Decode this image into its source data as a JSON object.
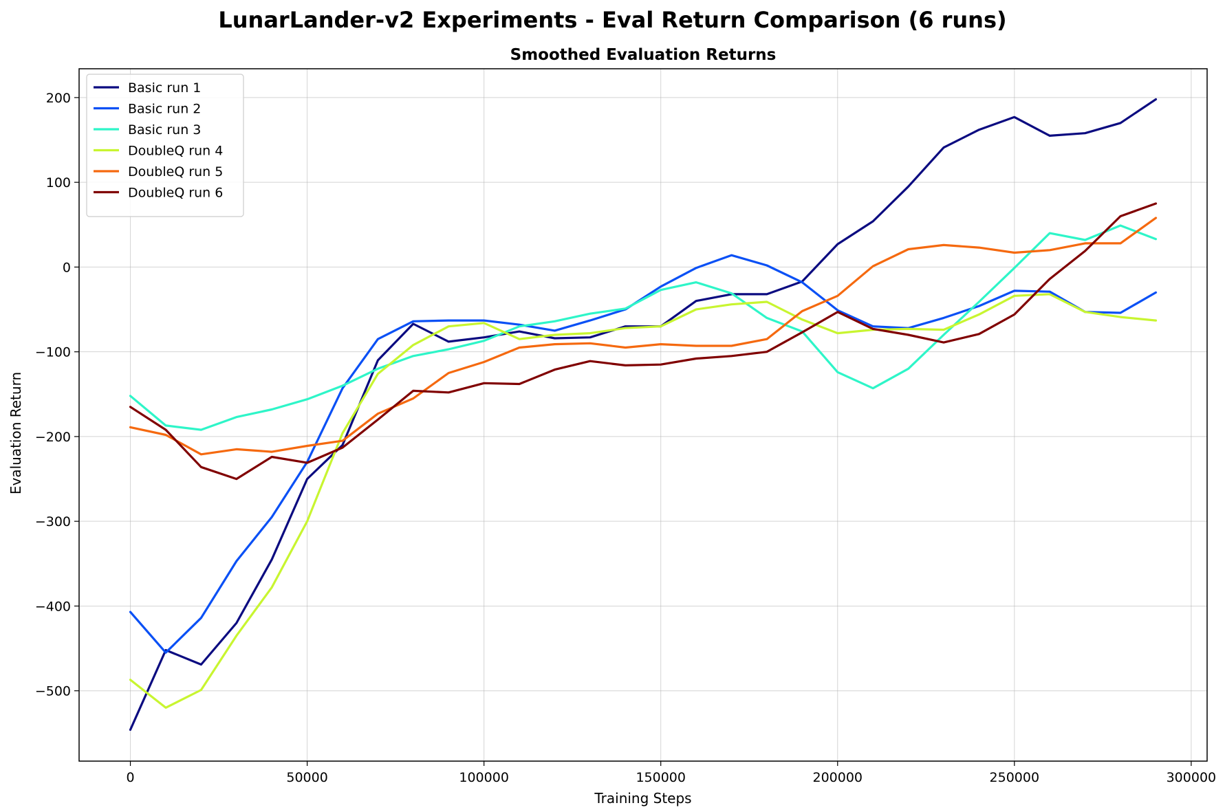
{
  "figure": {
    "title": "LunarLander-v2 Experiments - Eval Return Comparison (6 runs)"
  },
  "chart_data": {
    "type": "line",
    "title": "Smoothed Evaluation Returns",
    "xlabel": "Training Steps",
    "ylabel": "Evaluation Return",
    "xlim": [
      -14500,
      304500
    ],
    "ylim": [
      -583,
      234
    ],
    "xticks": [
      0,
      50000,
      100000,
      150000,
      200000,
      250000,
      300000
    ],
    "yticks": [
      -500,
      -400,
      -300,
      -200,
      -100,
      0,
      100,
      200
    ],
    "xtick_labels": [
      "0",
      "50000",
      "100000",
      "150000",
      "200000",
      "250000",
      "300000"
    ],
    "ytick_labels": [
      "−500",
      "−400",
      "−300",
      "−200",
      "−100",
      "0",
      "100",
      "200"
    ],
    "grid": true,
    "legend_position": "top-left",
    "x": [
      0,
      10000,
      20000,
      30000,
      40000,
      50000,
      60000,
      70000,
      80000,
      90000,
      100000,
      110000,
      120000,
      130000,
      140000,
      150000,
      160000,
      170000,
      180000,
      190000,
      200000,
      210000,
      220000,
      230000,
      240000,
      250000,
      260000,
      270000,
      280000,
      290000
    ],
    "series": [
      {
        "name": "Basic run 1",
        "color": "#0b0b80",
        "values": [
          -546,
          -452,
          -469,
          -420,
          -345,
          -250,
          -210,
          -110,
          -67,
          -88,
          -83,
          -76,
          -84,
          -83,
          -70,
          -70,
          -40,
          -32,
          -32,
          -17,
          27,
          54,
          95,
          141,
          162,
          177,
          155,
          158,
          170,
          198
        ]
      },
      {
        "name": "Basic run 2",
        "color": "#0a50f5",
        "values": [
          -407,
          -455,
          -414,
          -347,
          -295,
          -230,
          -143,
          -85,
          -64,
          -63,
          -63,
          -68,
          -75,
          -63,
          -50,
          -23,
          -1,
          14,
          2,
          -18,
          -51,
          -70,
          -72,
          -60,
          -46,
          -28,
          -29,
          -53,
          -54,
          -30
        ]
      },
      {
        "name": "Basic run 3",
        "color": "#2ef5c8",
        "values": [
          -152,
          -187,
          -192,
          -177,
          -168,
          -156,
          -140,
          -120,
          -105,
          -97,
          -87,
          -70,
          -64,
          -55,
          -49,
          -27,
          -18,
          -31,
          -60,
          -76,
          -124,
          -143,
          -120,
          -80,
          -41,
          -1,
          40,
          32,
          49,
          33
        ]
      },
      {
        "name": "DoubleQ run 4",
        "color": "#c8f530",
        "values": [
          -487,
          -520,
          -499,
          -435,
          -378,
          -300,
          -196,
          -126,
          -92,
          -70,
          -66,
          -85,
          -80,
          -78,
          -72,
          -70,
          -50,
          -44,
          -41,
          -62,
          -78,
          -74,
          -73,
          -74,
          -56,
          -34,
          -32,
          -53,
          -59,
          -63
        ]
      },
      {
        "name": "DoubleQ run 5",
        "color": "#f5690f",
        "values": [
          -189,
          -198,
          -221,
          -215,
          -218,
          -211,
          -205,
          -173,
          -155,
          -125,
          -112,
          -95,
          -91,
          -90,
          -95,
          -91,
          -93,
          -93,
          -85,
          -52,
          -34,
          1,
          21,
          26,
          23,
          17,
          20,
          28,
          28,
          58
        ]
      },
      {
        "name": "DoubleQ run 6",
        "color": "#800000",
        "values": [
          -165,
          -192,
          -236,
          -250,
          -224,
          -231,
          -213,
          -180,
          -146,
          -148,
          -137,
          -138,
          -121,
          -111,
          -116,
          -115,
          -108,
          -105,
          -100,
          -77,
          -53,
          -73,
          -80,
          -89,
          -79,
          -56,
          -14,
          19,
          60,
          75
        ]
      }
    ]
  }
}
